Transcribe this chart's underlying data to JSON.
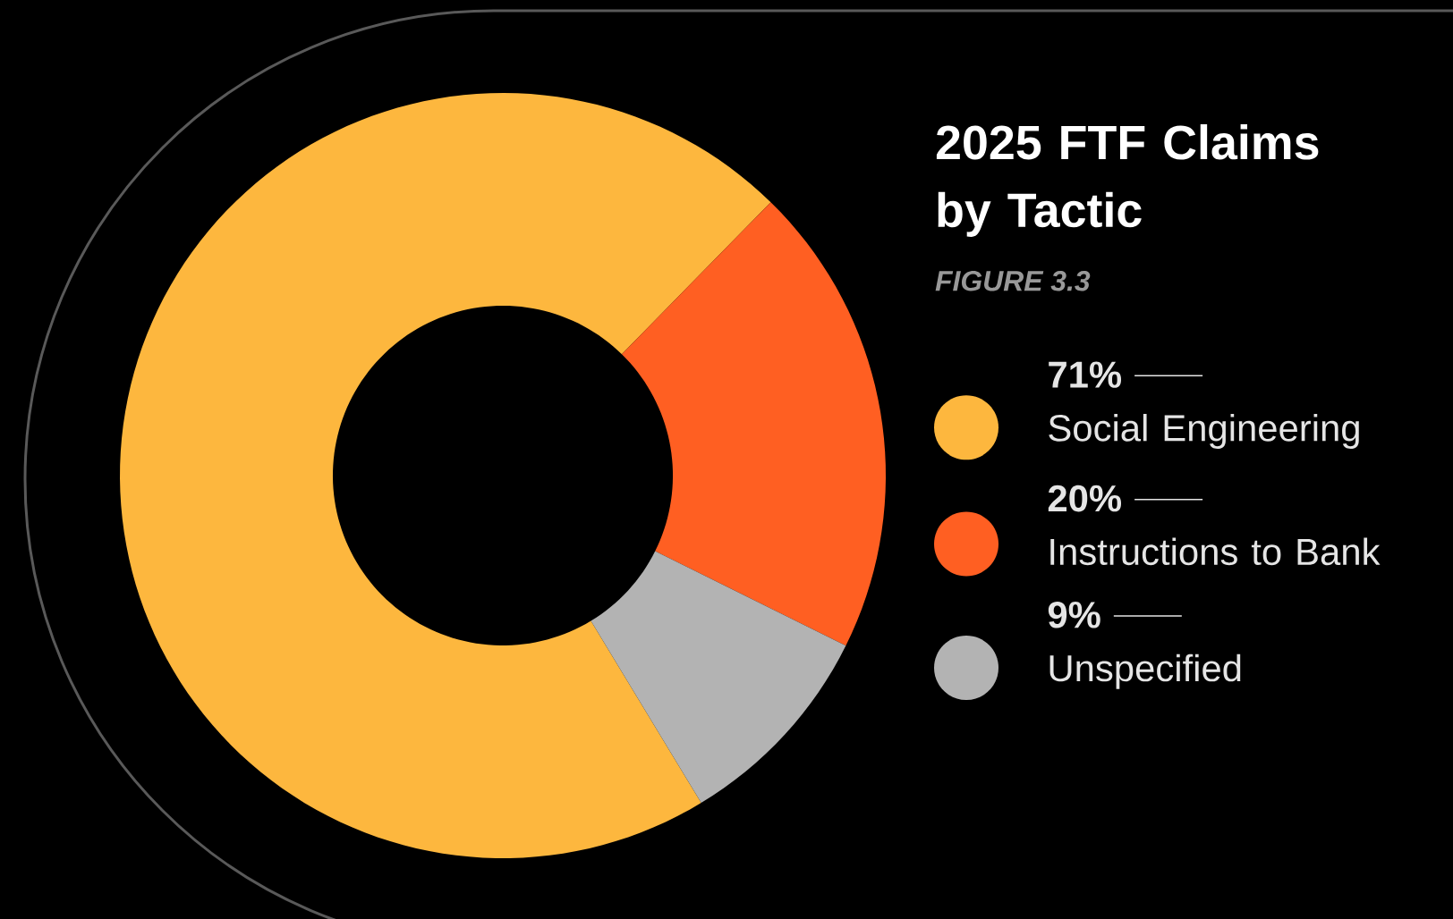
{
  "chart_data": {
    "type": "donut",
    "title": "2025 FTF Claims by Tactic",
    "subtitle": "FIGURE 3.3",
    "categories": [
      "Social Engineering",
      "Instructions to Bank",
      "Unspecified"
    ],
    "values": [
      71,
      20,
      9
    ],
    "colors": [
      "#fdb73e",
      "#ff5f22",
      "#b3b3b3"
    ],
    "value_labels": [
      "71%",
      "20%",
      "9%"
    ],
    "legend": "right"
  }
}
